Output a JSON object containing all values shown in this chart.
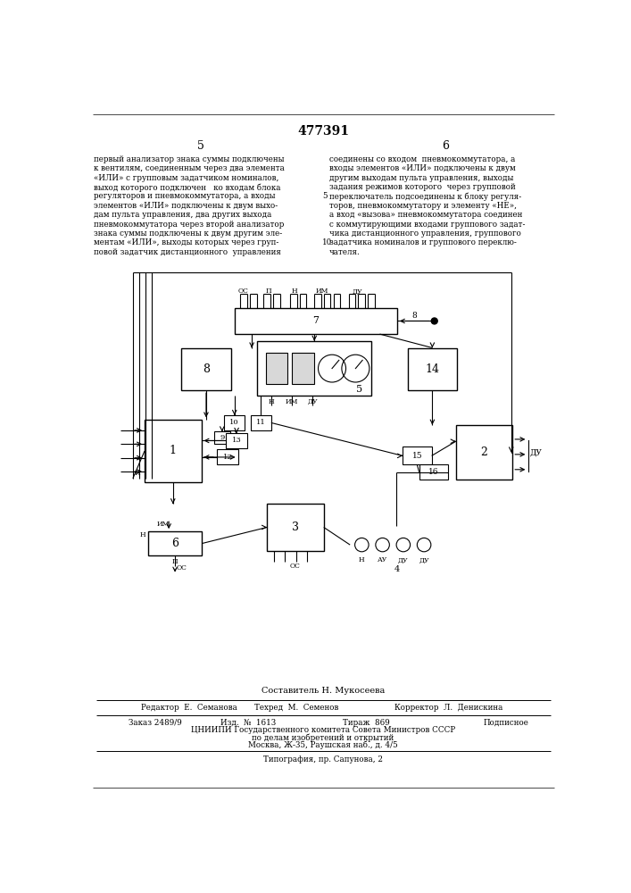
{
  "title": "477391",
  "page_numbers": [
    "5",
    "6"
  ],
  "background_color": "#ffffff",
  "line_color": "#000000",
  "text_color": "#000000",
  "left_text": [
    "первый анализатор знака суммы подключены",
    "к вентилям, соединенным через два элемента",
    "«ИЛИ» с групповым задатчиком номиналов,",
    "выход которого подключен   ко входам блока",
    "регуляторов и пневмокоммутатора, а входы",
    "элементов «ИЛИ» подключены к двум выхо-",
    "дам пульта управления, два других выхода",
    "пневмокоммутатора через второй анализатор",
    "знака суммы подключены к двум другим эле-",
    "ментам «ИЛИ», выходы которых через груп-",
    "повой задатчик дистанционного  управления"
  ],
  "right_text": [
    "соединены со входом  пневмокоммутатора, а",
    "входы элементов «ИЛИ» подключены к двум",
    "другим выходам пульта управления, выходы",
    "задания режимов которого  через групповой",
    "переключатель подсоединены к блоку регуля-",
    "торов, пневмокоммутатору и элементу «НЕ»,",
    "а вход «вызова» пневмокоммутатора соединен",
    "с коммутирующими входами группового задат-",
    "чика дистанционного управления, группового",
    "задатчика номиналов и группового переклю-",
    "чателя."
  ],
  "footer_composer": "Составитель Н. Мукосеева",
  "footer_editor": "Редактор  Е.  Семанова",
  "footer_techred": "Техред  М.  Семенов",
  "footer_corrector": "Корректор  Л.  Денискина",
  "footer_order": "Заказ 2489/9",
  "footer_izd": "Изд.  №  1613",
  "footer_tirazh": "Тираж  869",
  "footer_podpisnoe": "Подписное",
  "footer_org": "ЦНИИПИ Государственного комитета Совета Министров СССР",
  "footer_org2": "по делам изобретений и открытий",
  "footer_addr": "Москва, Ж-35, Раушская наб., д. 4/5",
  "footer_typo": "Типография, пр. Сапунова, 2"
}
